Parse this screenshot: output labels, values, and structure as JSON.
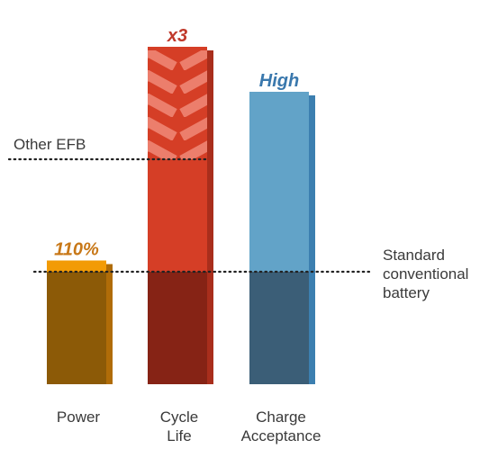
{
  "chart_data": {
    "type": "bar",
    "title": "",
    "xlabel": "",
    "ylabel": "",
    "baseline_value": 1.0,
    "ylim": [
      0,
      3.6
    ],
    "grid": false,
    "categories": [
      {
        "label_lines": [
          "Power"
        ],
        "value": 1.1,
        "value_label": "110%",
        "color": "#f29b06",
        "base_color": "#8c5a07",
        "side_color": "#b06c08",
        "label_color": "#c87818"
      },
      {
        "label_lines": [
          "Cycle",
          "Life"
        ],
        "value": 3.0,
        "value_label": "x3",
        "color": "#d53e26",
        "base_color": "#862315",
        "side_color": "#a92e1c",
        "label_color": "#c0392b"
      },
      {
        "label_lines": [
          "Charge",
          "Acceptance"
        ],
        "value": 2.6,
        "value_label": "High",
        "color": "#62a3c8",
        "base_color": "#3b5e77",
        "side_color": "#3c7fb0",
        "label_color": "#3a78ad"
      }
    ],
    "reference_lines": [
      {
        "label_lines": [
          "Other EFB"
        ],
        "value": 2.0
      },
      {
        "label_lines": [
          "Standard",
          "conventional",
          "battery"
        ],
        "value": 1.0
      }
    ],
    "colors": {
      "text": "#3a3a3a",
      "chevron": "#f08a78"
    }
  }
}
